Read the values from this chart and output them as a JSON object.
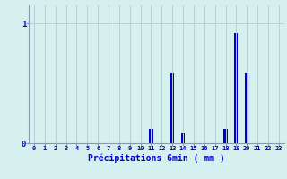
{
  "hours": [
    0,
    1,
    2,
    3,
    4,
    5,
    6,
    7,
    8,
    9,
    10,
    11,
    12,
    13,
    14,
    15,
    16,
    17,
    18,
    19,
    20,
    21,
    22,
    23
  ],
  "values": [
    0,
    0,
    0,
    0,
    0,
    0,
    0,
    0,
    0,
    0,
    0,
    0.12,
    0,
    0.58,
    0.08,
    0,
    0,
    0,
    0.12,
    0.92,
    0.58,
    0,
    0,
    0
  ],
  "bar_color": "#0000cc",
  "bg_color": "#d6f0f0",
  "grid_color": "#b8d0d0",
  "axis_color": "#8899aa",
  "text_color": "#0000cc",
  "xlabel": "Précipitations 6min ( mm )",
  "yticks": [
    0,
    1
  ],
  "ylim": [
    0,
    1.15
  ],
  "xlim": [
    -0.5,
    23.5
  ]
}
